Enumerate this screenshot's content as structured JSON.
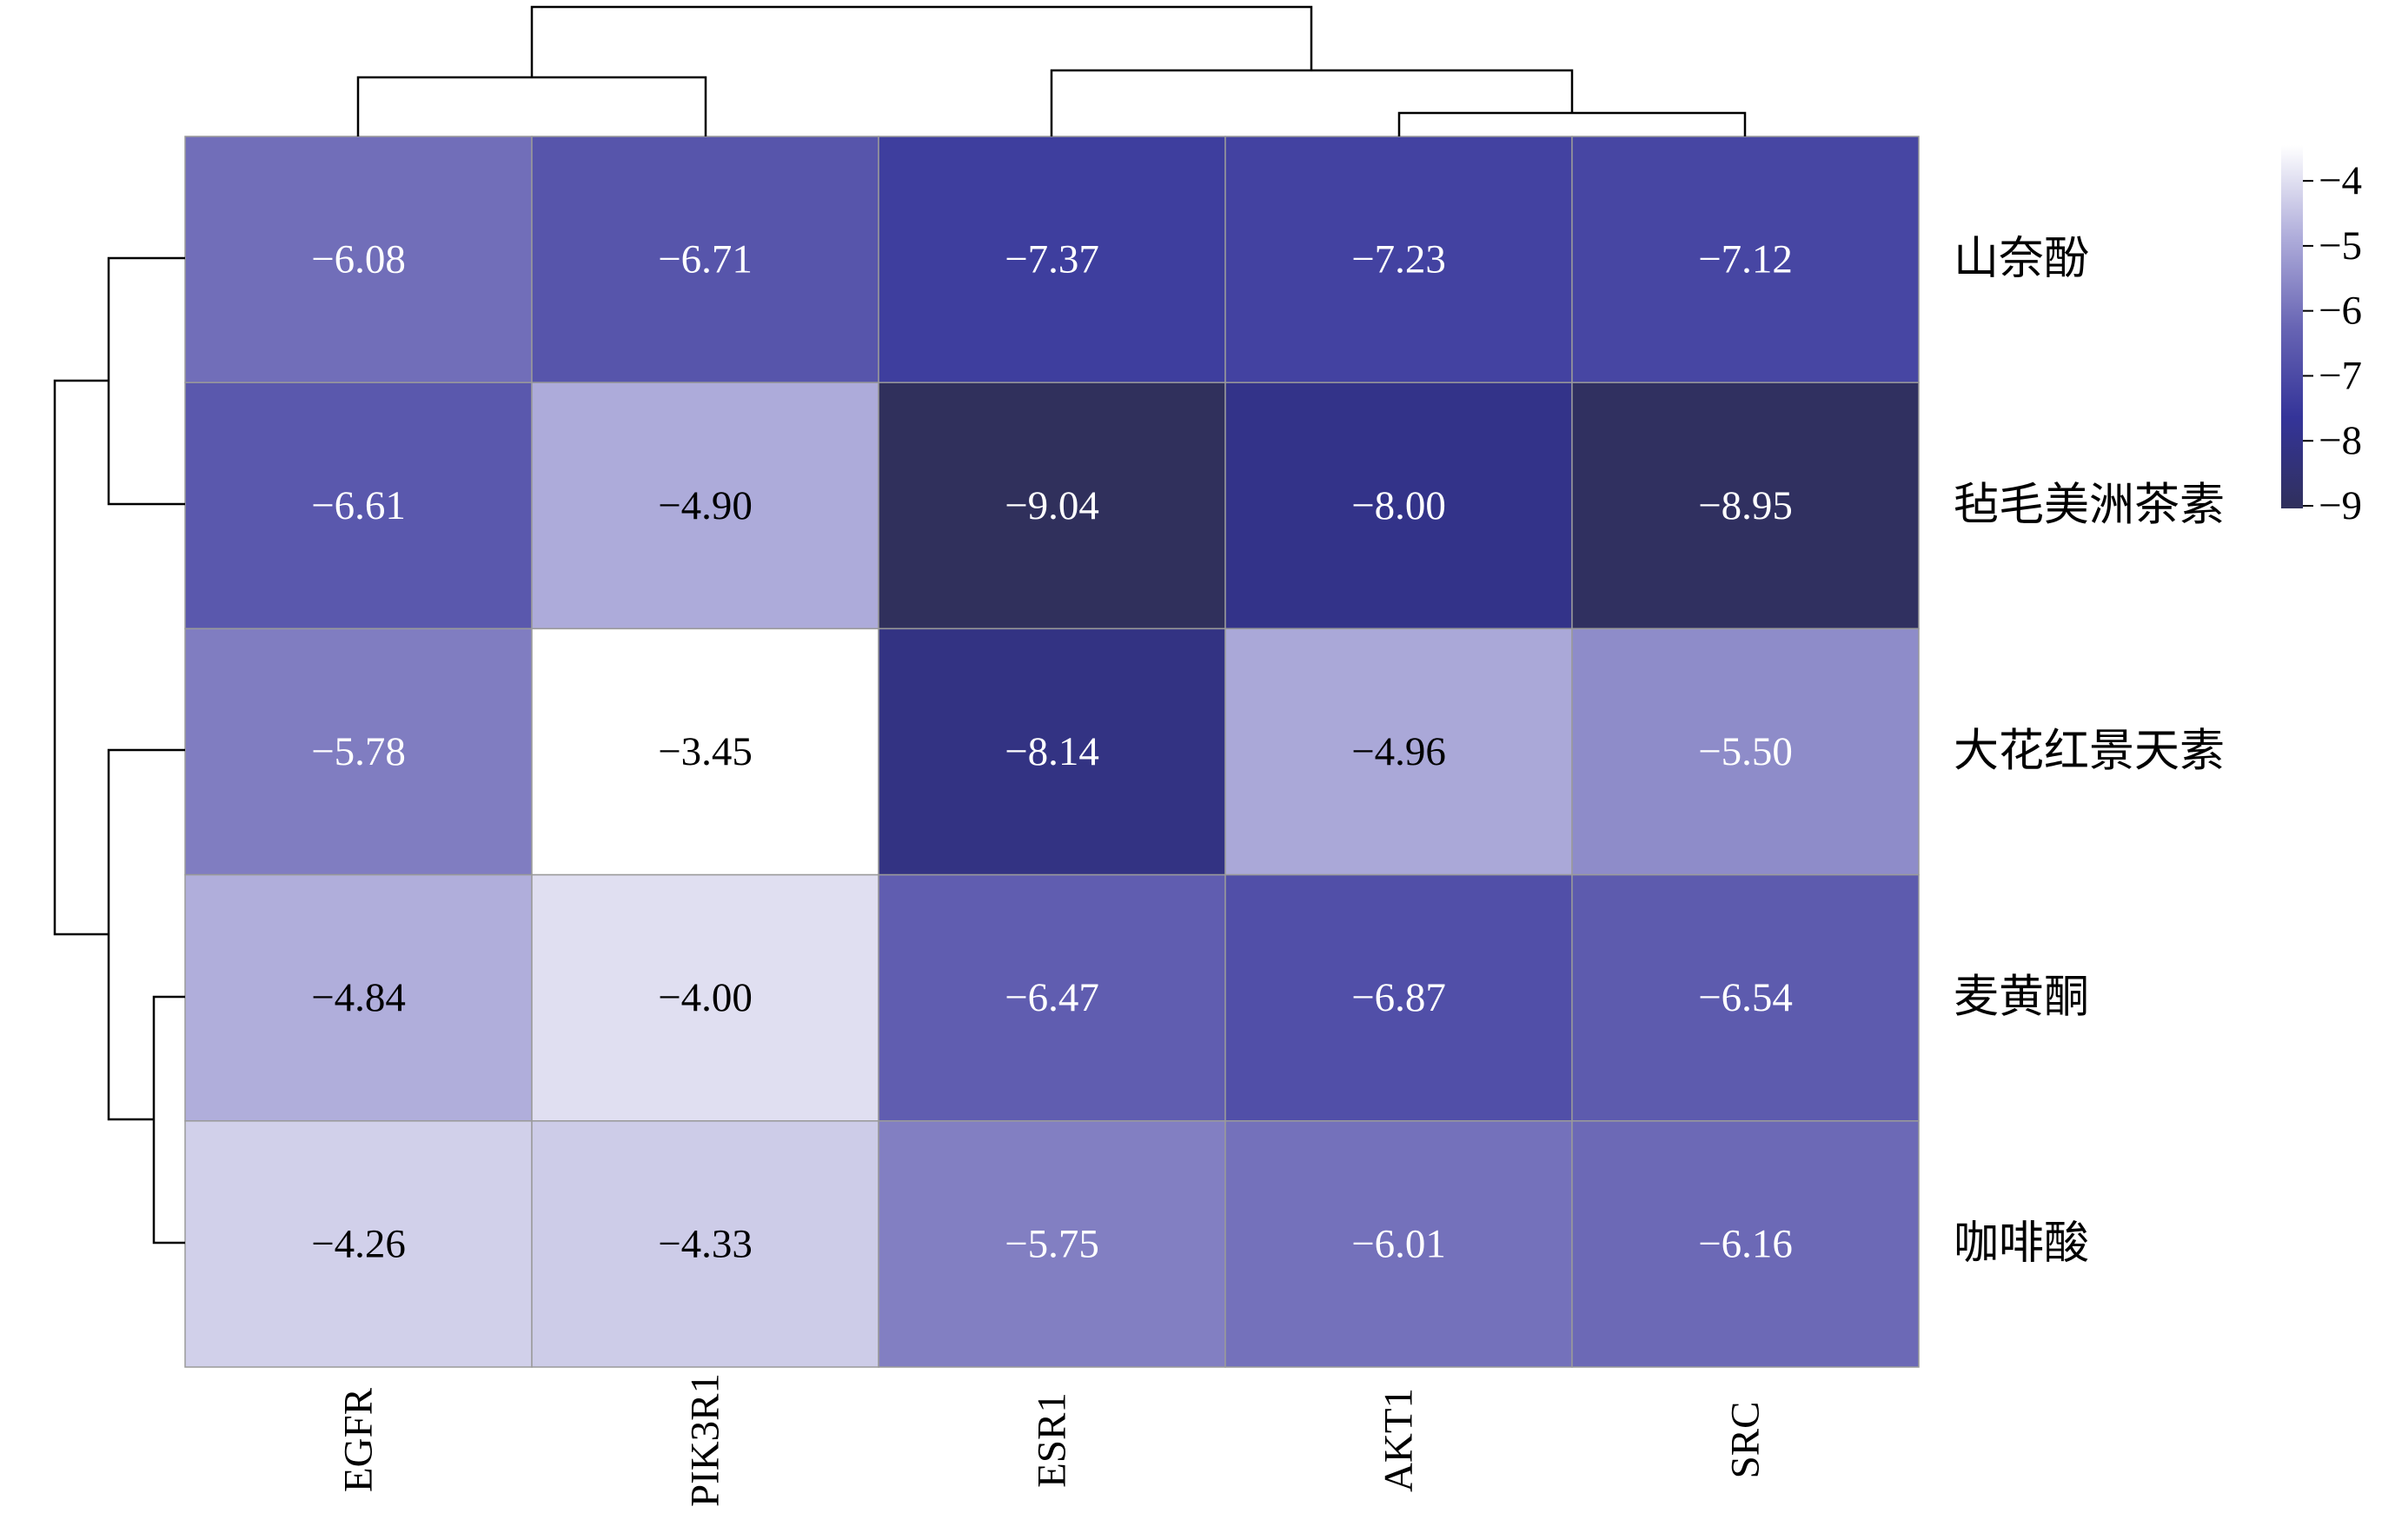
{
  "chart_data": {
    "type": "heatmap",
    "rows": [
      "山奈酚",
      "毡毛美洲茶素",
      "大花红景天素",
      "麦黄酮",
      "咖啡酸"
    ],
    "columns": [
      "EGFR",
      "PIK3R1",
      "ESR1",
      "AKT1",
      "SRC"
    ],
    "values": [
      [
        -6.08,
        -6.71,
        -7.37,
        -7.23,
        -7.12
      ],
      [
        -6.61,
        -4.9,
        -9.04,
        -8.0,
        -8.95
      ],
      [
        -5.78,
        -3.45,
        -8.14,
        -4.96,
        -5.5
      ],
      [
        -4.84,
        -4.0,
        -6.47,
        -6.87,
        -6.54
      ],
      [
        -4.26,
        -4.33,
        -5.75,
        -6.01,
        -6.16
      ]
    ],
    "value_labels": [
      [
        "−6.08",
        "−6.71",
        "−7.37",
        "−7.23",
        "−7.12"
      ],
      [
        "−6.61",
        "−4.90",
        "−9.04",
        "−8.00",
        "−8.95"
      ],
      [
        "−5.78",
        "−3.45",
        "−8.14",
        "−4.96",
        "−5.50"
      ],
      [
        "−4.84",
        "−4.00",
        "−6.47",
        "−6.87",
        "−6.54"
      ],
      [
        "−4.26",
        "−4.33",
        "−5.75",
        "−6.01",
        "−6.16"
      ]
    ],
    "colorbar": {
      "ticks": [
        -4,
        -5,
        -6,
        -7,
        -8,
        -9
      ],
      "tick_labels": [
        "−4",
        "−5",
        "−6",
        "−7",
        "−8",
        "−9"
      ],
      "range": [
        -9.04,
        -3.45
      ],
      "colors": [
        "#ffffff",
        "#b0aedb",
        "#6865b4",
        "#343499",
        "#30305c"
      ]
    },
    "dendrogram_columns": "top",
    "dendrogram_rows": "left",
    "grid": true,
    "title": "",
    "xlabel": "",
    "ylabel": ""
  }
}
